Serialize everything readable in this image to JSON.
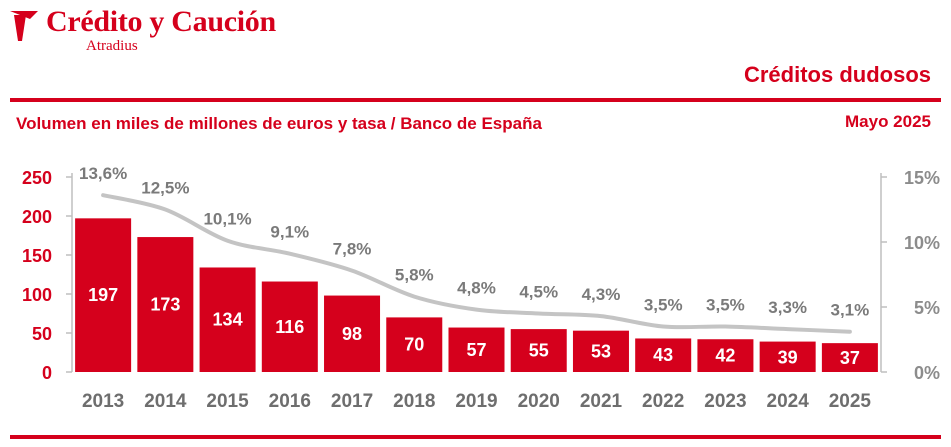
{
  "header": {
    "brand_name": "Crédito y Caución",
    "brand_sub": "Atradius",
    "title": "Créditos dudosos",
    "subtitle": "Volumen en miles de millones de euros y tasa / Banco de España",
    "date": "Mayo 2025"
  },
  "colors": {
    "brand": "#d5001c",
    "line": "#c4c4c4",
    "axis_right": "#8c8c8c"
  },
  "chart_data": {
    "type": "bar",
    "categories": [
      "2013",
      "2014",
      "2015",
      "2016",
      "2017",
      "2018",
      "2019",
      "2020",
      "2021",
      "2022",
      "2023",
      "2024",
      "2025"
    ],
    "series": [
      {
        "type": "bar",
        "values": [
          197,
          173,
          134,
          116,
          98,
          70,
          57,
          55,
          53,
          43,
          42,
          39,
          37
        ]
      },
      {
        "type": "line",
        "values": [
          13.6,
          12.5,
          10.1,
          9.1,
          7.8,
          5.8,
          4.8,
          4.5,
          4.3,
          3.5,
          3.5,
          3.3,
          3.1
        ],
        "labels": [
          "13,6%",
          "12,5%",
          "10,1%",
          "9,1%",
          "7,8%",
          "5,8%",
          "4,8%",
          "4,5%",
          "4,3%",
          "3,5%",
          "3,5%",
          "3,3%",
          "3,1%"
        ]
      }
    ],
    "ylim_left": [
      0,
      250
    ],
    "yticks_left": [
      "0",
      "50",
      "100",
      "150",
      "200",
      "250"
    ],
    "ylim_right": [
      0,
      15
    ],
    "yticks_right": [
      "0%",
      "5%",
      "10%",
      "15%"
    ],
    "grid": false
  }
}
